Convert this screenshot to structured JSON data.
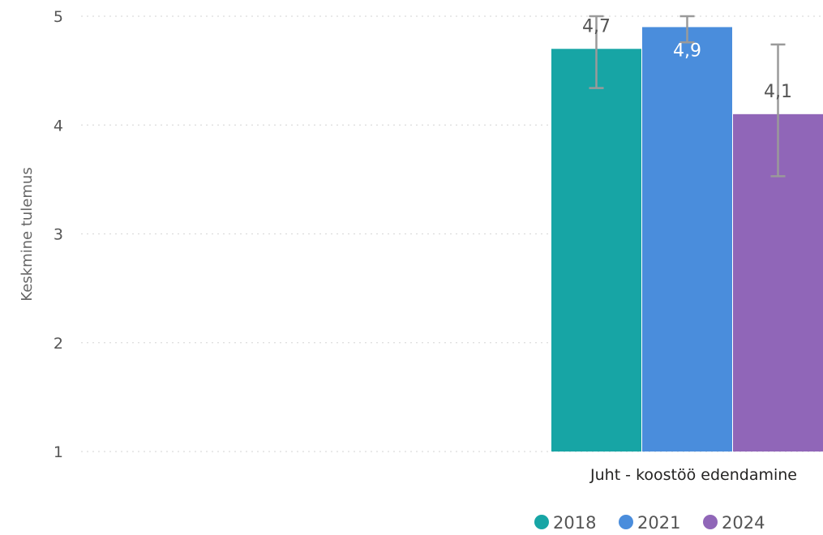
{
  "chart_data": {
    "type": "bar",
    "categories": [
      "Juht - koostöö edendamine"
    ],
    "series": [
      {
        "name": "2018",
        "values": [
          4.7
        ],
        "error_low": [
          4.34
        ],
        "error_high": [
          5.0
        ],
        "label": "4,7",
        "color": "#17a5a5"
      },
      {
        "name": "2021",
        "values": [
          4.9
        ],
        "error_low": [
          4.76
        ],
        "error_high": [
          5.0
        ],
        "label": "4,9",
        "color": "#4a8ddc"
      },
      {
        "name": "2024",
        "values": [
          4.1
        ],
        "error_low": [
          3.53
        ],
        "error_high": [
          4.74
        ],
        "label": "4,1",
        "color": "#9066b8"
      }
    ],
    "ylabel": "Keskmine tulemus",
    "xlabel": "",
    "ylim": [
      1,
      5
    ],
    "yticks": [
      "1",
      "2",
      "3",
      "4",
      "5"
    ],
    "grid": true,
    "legend_position": "bottom-right"
  }
}
